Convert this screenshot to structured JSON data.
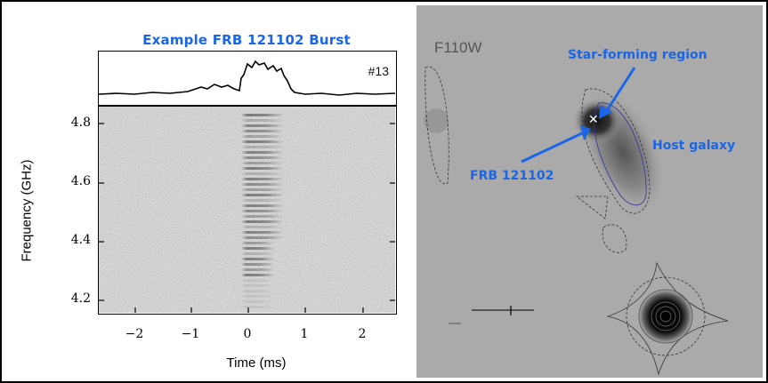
{
  "left": {
    "title": "Example FRB 121102 Burst",
    "burst_id": "#13",
    "ylabel": "Frequency (GHz)",
    "xlabel": "Time (ms)",
    "y_ticks": [
      "4.8",
      "4.6",
      "4.4",
      "4.2"
    ],
    "x_ticks": [
      "−2",
      "−1",
      "0",
      "1",
      "2"
    ]
  },
  "right": {
    "filter": "F110W",
    "annotations": {
      "star_forming": "Star-forming region",
      "host": "Host galaxy",
      "frb": "FRB 121102"
    },
    "arrow_color": "#1a66e6",
    "marker_icon": "x-marker-icon"
  }
}
